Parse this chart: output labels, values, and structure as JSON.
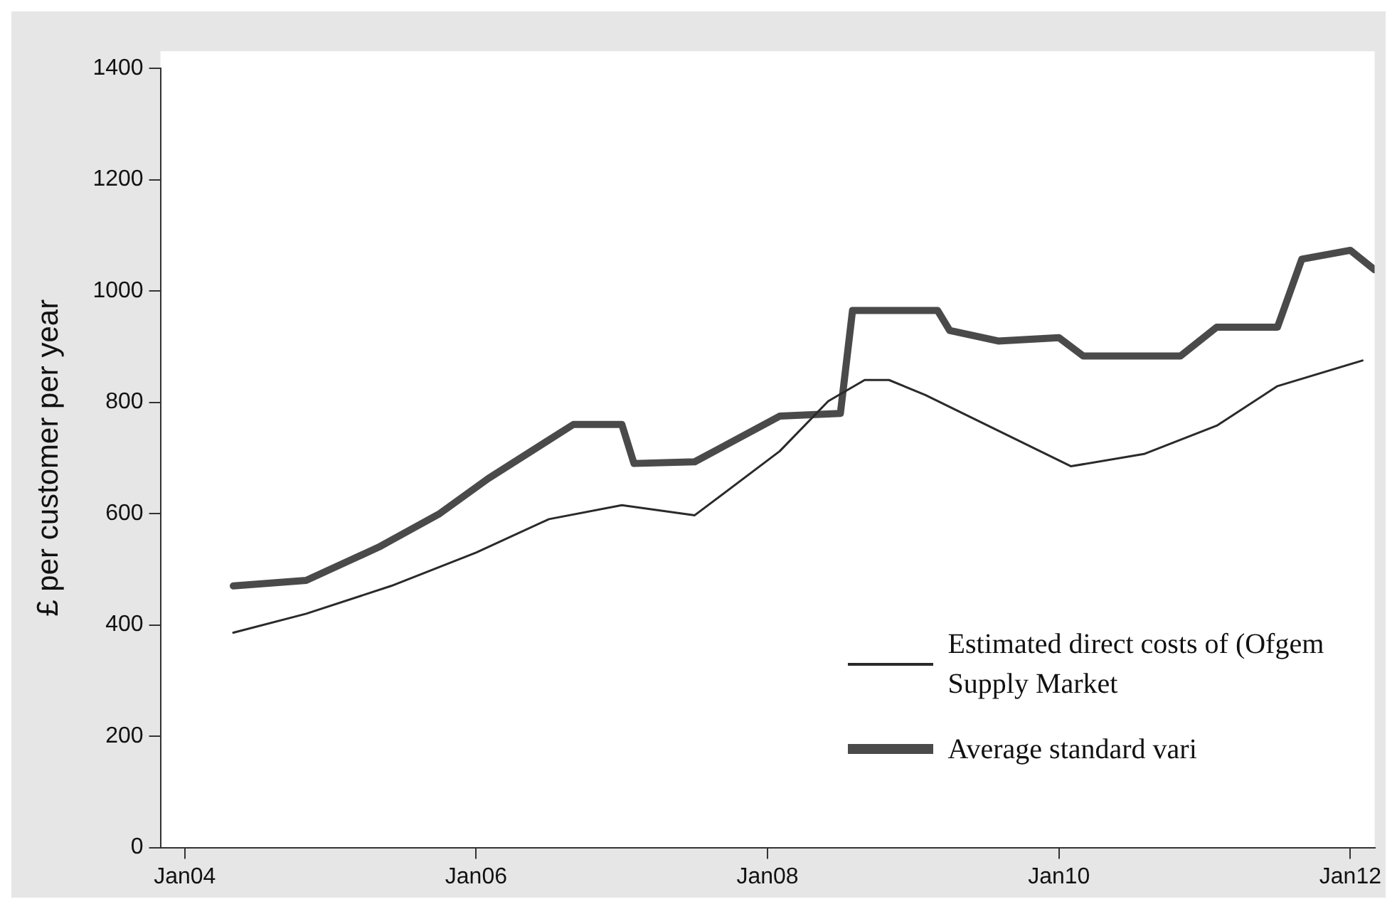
{
  "chart_data": {
    "type": "line",
    "ylabel": "£ per customer per year",
    "ylim": [
      0,
      1400
    ],
    "yticks": [
      0,
      200,
      400,
      600,
      800,
      1000,
      1200,
      1400
    ],
    "xlim": [
      "2003-11",
      "2012-03"
    ],
    "xticks": [
      {
        "value": "2004-01",
        "label": "Jan04"
      },
      {
        "value": "2006-01",
        "label": "Jan06"
      },
      {
        "value": "2008-01",
        "label": "Jan08"
      },
      {
        "value": "2010-01",
        "label": "Jan10"
      },
      {
        "value": "2012-01",
        "label": "Jan12"
      }
    ],
    "grid": false,
    "legend": "bottom right",
    "marker": "none",
    "line_style": "solid",
    "series": [
      {
        "name": "Estimated direct costs of (Ofgem Supply Market",
        "color": "#2a2a2a",
        "x": [
          "2004-05",
          "2004-11",
          "2005-06",
          "2006-01",
          "2006-07",
          "2007-01",
          "2007-07",
          "2008-02",
          "2008-06",
          "2008-09",
          "2008-11",
          "2009-02",
          "2010-02",
          "2010-08",
          "2011-02",
          "2011-07",
          "2012-02"
        ],
        "values": [
          386,
          420,
          470,
          530,
          590,
          615,
          597,
          712,
          802,
          840,
          840,
          813,
          685,
          707,
          758,
          829,
          875
        ]
      },
      {
        "name": "Average standard vari",
        "color": "#4a4a4a",
        "x": [
          "2004-05",
          "2004-11",
          "2005-05",
          "2005-10",
          "2006-02",
          "2006-09",
          "2007-01",
          "2007-02",
          "2007-07",
          "2008-02",
          "2008-07",
          "2008-08",
          "2009-03",
          "2009-04",
          "2009-08",
          "2010-01",
          "2010-03",
          "2010-11",
          "2011-02",
          "2011-07",
          "2011-09",
          "2012-01",
          "2012-03"
        ],
        "values": [
          470,
          480,
          540,
          600,
          663,
          760,
          760,
          690,
          693,
          775,
          780,
          965,
          965,
          929,
          910,
          916,
          883,
          883,
          935,
          935,
          1057,
          1073,
          1038
        ]
      }
    ]
  }
}
